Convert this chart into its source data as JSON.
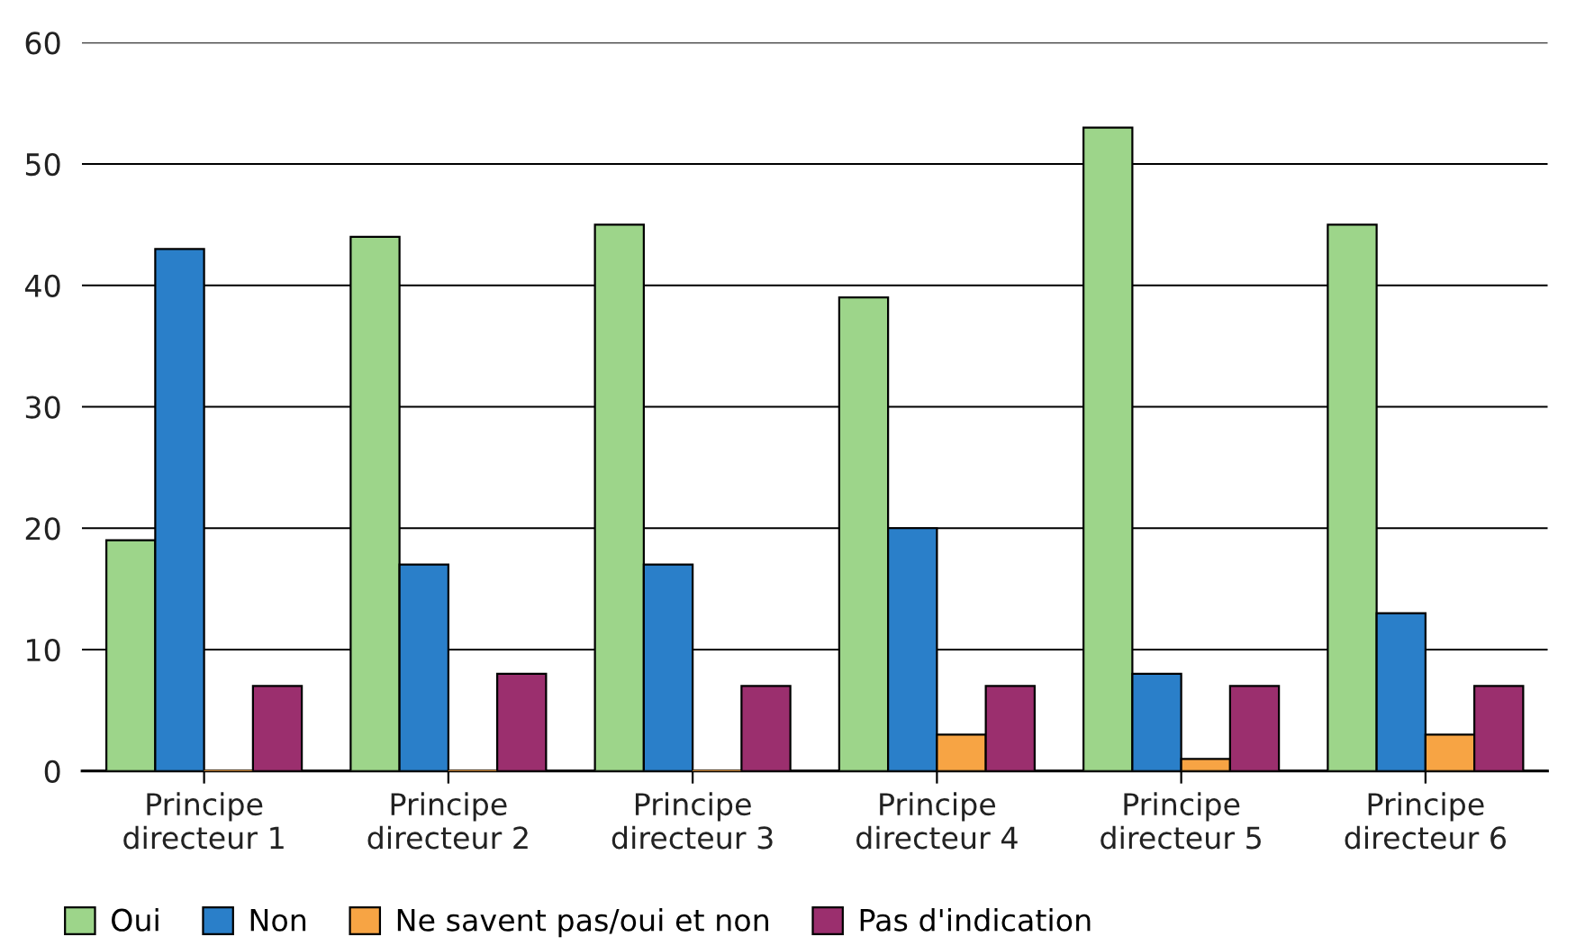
{
  "chart_data": {
    "type": "bar",
    "categories": [
      "Principe\ndirecteur 1",
      "Principe\ndirecteur 2",
      "Principe\ndirecteur 3",
      "Principe\ndirecteur 4",
      "Principe\ndirecteur 5",
      "Principe\ndirecteur 6"
    ],
    "series": [
      {
        "name": "Oui",
        "color": "#9dd58a",
        "values": [
          19,
          44,
          45,
          39,
          53,
          45
        ]
      },
      {
        "name": "Non",
        "color": "#2a7fc9",
        "values": [
          43,
          17,
          17,
          20,
          8,
          13
        ]
      },
      {
        "name": "Ne savent pas/oui et non",
        "color": "#f7a444",
        "values": [
          0,
          0,
          0,
          3,
          1,
          3
        ]
      },
      {
        "name": "Pas d'indication",
        "color": "#9b2f6e",
        "values": [
          7,
          8,
          7,
          7,
          7,
          7
        ]
      }
    ],
    "ylim": [
      0,
      60
    ],
    "yticks": [
      0,
      10,
      20,
      30,
      40,
      50,
      60
    ],
    "grid": "y",
    "legend": "bottom"
  }
}
